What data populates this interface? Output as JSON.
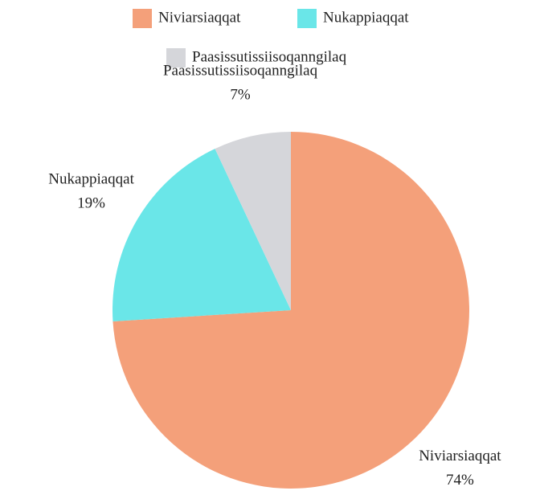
{
  "chart_data": {
    "type": "pie",
    "categories": [
      "Niviarsiaqqat",
      "Nukappiaqqat",
      "Paasissutissiisoqanngilaq"
    ],
    "values": [
      74,
      19,
      7
    ],
    "value_labels": [
      "74%",
      "19%",
      "7%"
    ],
    "colors": [
      "#f4a07a",
      "#6ae6e8",
      "#d5d6da"
    ]
  }
}
